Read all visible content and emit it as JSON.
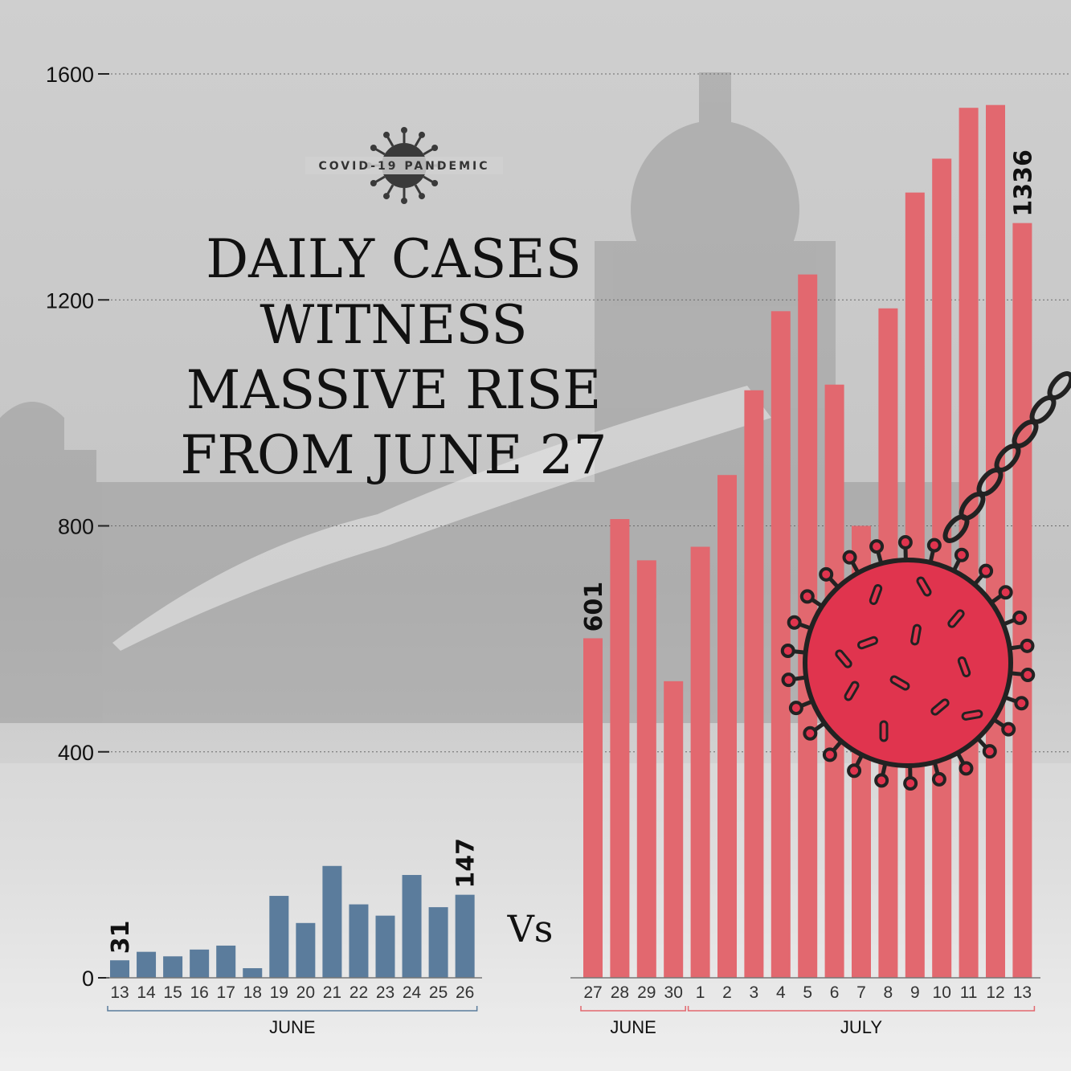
{
  "badge": {
    "text": "COVID-19 PANDEMIC",
    "icon": "virus-icon"
  },
  "title": {
    "lines": [
      "DAILY CASES",
      "WITNESS",
      "MASSIVE RISE",
      "FROM JUNE 27"
    ]
  },
  "vs_label": "Vs",
  "colors": {
    "before_bars": "#5b7c9c",
    "after_bars": "#e2686f",
    "virus": "#e0344e",
    "background": "#d9d9d9"
  },
  "chart_data": {
    "type": "bar",
    "ylim": [
      0,
      1600
    ],
    "yticks": [
      "0",
      "400",
      "800",
      "1200",
      "1600"
    ],
    "grid": true,
    "panels": [
      {
        "name": "before",
        "categories": [
          "13",
          "14",
          "15",
          "16",
          "17",
          "18",
          "19",
          "20",
          "21",
          "22",
          "23",
          "24",
          "25",
          "26"
        ],
        "values": [
          31,
          46,
          38,
          50,
          57,
          17,
          145,
          97,
          198,
          130,
          110,
          182,
          125,
          147
        ],
        "labels": {
          "first": "31",
          "last": "147"
        },
        "groups": [
          {
            "label": "JUNE",
            "from": 0,
            "to": 13
          }
        ]
      },
      {
        "name": "after",
        "categories": [
          "27",
          "28",
          "29",
          "30",
          "1",
          "2",
          "3",
          "4",
          "5",
          "6",
          "7",
          "8",
          "9",
          "10",
          "11",
          "12",
          "13"
        ],
        "values": [
          601,
          812,
          739,
          525,
          763,
          890,
          1040,
          1180,
          1245,
          1050,
          800,
          1185,
          1390,
          1450,
          1540,
          1545,
          1336
        ],
        "labels": {
          "first": "601",
          "last": "1336"
        },
        "groups": [
          {
            "label": "JUNE",
            "from": 0,
            "to": 3
          },
          {
            "label": "JULY",
            "from": 4,
            "to": 16
          }
        ]
      }
    ]
  }
}
